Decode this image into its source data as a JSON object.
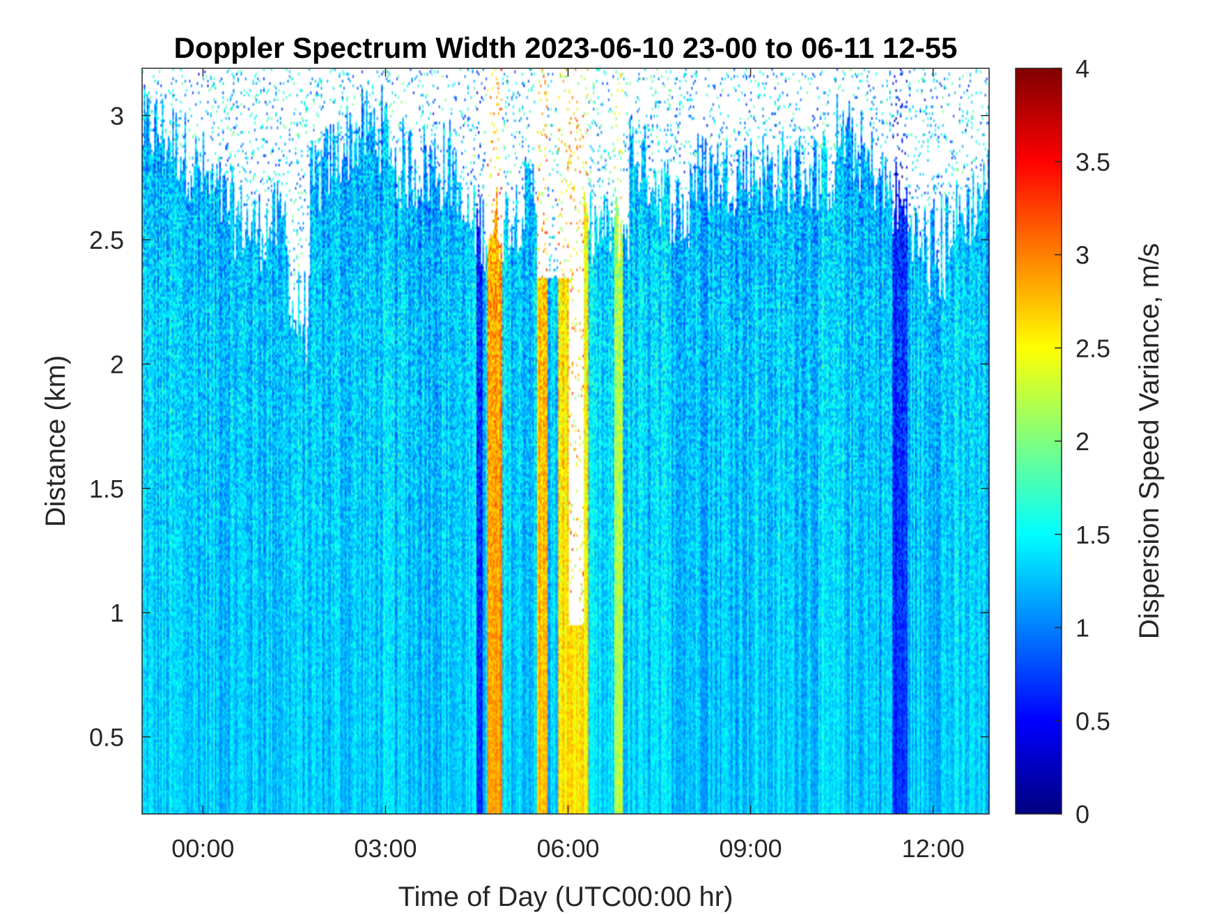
{
  "chart_data": {
    "type": "heatmap",
    "title": "Doppler Spectrum Width 2023-06-10 23-00 to 06-11 12-55",
    "xlabel": "Time of Day (UTC00:00 hr)",
    "ylabel": "Distance (km)",
    "colorbar_label": "Dispersion Speed Variance, m/s",
    "colormap": "jet",
    "x_ticks": [
      "00:00",
      "03:00",
      "06:00",
      "09:00",
      "12:00"
    ],
    "x_tick_hours": [
      24,
      27,
      30,
      33,
      36
    ],
    "xlim_hours": [
      23.0,
      36.92
    ],
    "y_ticks": [
      "0.5",
      "1",
      "1.5",
      "2",
      "2.5",
      "3"
    ],
    "y_tick_values": [
      0.5,
      1,
      1.5,
      2,
      2.5,
      3
    ],
    "ylim": [
      0.19,
      3.19
    ],
    "clim": [
      0,
      4
    ],
    "colorbar_ticks": [
      "0",
      "0.5",
      "1",
      "1.5",
      "2",
      "2.5",
      "3",
      "3.5",
      "4"
    ],
    "colorbar_tick_values": [
      0,
      0.5,
      1,
      1.5,
      2,
      2.5,
      3,
      3.5,
      4
    ],
    "background_value": 1.3,
    "no_data_color": "#ffffff",
    "features": [
      {
        "name": "orange band",
        "start": "04:40",
        "end": "04:55",
        "value": 2.9
      },
      {
        "name": "yellow band",
        "start": "05:30",
        "end": "05:40",
        "value": 2.7
      },
      {
        "name": "yellow band",
        "start": "05:50",
        "end": "06:20",
        "value": 2.6
      },
      {
        "name": "green-yellow band",
        "start": "06:45",
        "end": "06:55",
        "value": 2.2
      },
      {
        "name": "dark blue streak",
        "start": "04:30",
        "end": "04:35",
        "value": 0.6
      },
      {
        "name": "dark blue streak",
        "start": "11:20",
        "end": "11:35",
        "value": 0.7
      }
    ]
  }
}
